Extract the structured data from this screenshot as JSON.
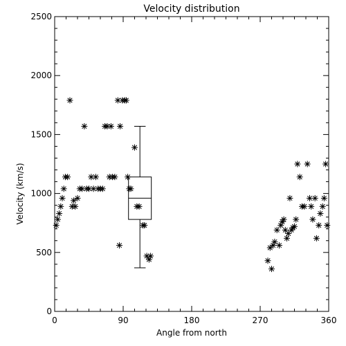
{
  "chart_data": {
    "type": "scatter",
    "title": "Velocity distribution",
    "xlabel": "Angle from north",
    "ylabel": "Velocity (km/s)",
    "xlim": [
      0,
      360
    ],
    "ylim": [
      0,
      2500
    ],
    "xticks": [
      0,
      90,
      180,
      270,
      360
    ],
    "yticks": [
      0,
      500,
      1000,
      1500,
      2000,
      2500
    ],
    "grid": false,
    "marker": "asterisk",
    "points": [
      [
        2,
        730
      ],
      [
        4,
        780
      ],
      [
        6,
        830
      ],
      [
        8,
        890
      ],
      [
        10,
        960
      ],
      [
        12,
        1040
      ],
      [
        14,
        1140
      ],
      [
        17,
        1140
      ],
      [
        20,
        1790
      ],
      [
        23,
        890
      ],
      [
        25,
        940
      ],
      [
        27,
        890
      ],
      [
        30,
        960
      ],
      [
        33,
        1040
      ],
      [
        36,
        1040
      ],
      [
        39,
        1570
      ],
      [
        42,
        1040
      ],
      [
        45,
        1040
      ],
      [
        48,
        1140
      ],
      [
        51,
        1040
      ],
      [
        54,
        1140
      ],
      [
        57,
        1040
      ],
      [
        60,
        1040
      ],
      [
        63,
        1040
      ],
      [
        66,
        1570
      ],
      [
        69,
        1570
      ],
      [
        72,
        1140
      ],
      [
        74,
        1570
      ],
      [
        76,
        1140
      ],
      [
        79,
        1140
      ],
      [
        83,
        1790
      ],
      [
        86,
        1570
      ],
      [
        85,
        560
      ],
      [
        89,
        1790
      ],
      [
        92,
        1790
      ],
      [
        94,
        1790
      ],
      [
        96,
        1140
      ],
      [
        98,
        1040
      ],
      [
        100,
        1040
      ],
      [
        105,
        1390
      ],
      [
        108,
        890
      ],
      [
        111,
        890
      ],
      [
        116,
        730
      ],
      [
        118,
        730
      ],
      [
        121,
        470
      ],
      [
        124,
        440
      ],
      [
        126,
        470
      ],
      [
        280,
        430
      ],
      [
        283,
        540
      ],
      [
        285,
        360
      ],
      [
        287,
        560
      ],
      [
        289,
        590
      ],
      [
        292,
        690
      ],
      [
        295,
        560
      ],
      [
        297,
        730
      ],
      [
        299,
        760
      ],
      [
        301,
        780
      ],
      [
        303,
        690
      ],
      [
        305,
        620
      ],
      [
        307,
        660
      ],
      [
        309,
        960
      ],
      [
        311,
        690
      ],
      [
        313,
        710
      ],
      [
        315,
        720
      ],
      [
        317,
        780
      ],
      [
        319,
        1250
      ],
      [
        322,
        1140
      ],
      [
        325,
        890
      ],
      [
        328,
        890
      ],
      [
        332,
        1250
      ],
      [
        335,
        960
      ],
      [
        337,
        890
      ],
      [
        339,
        780
      ],
      [
        342,
        960
      ],
      [
        344,
        620
      ],
      [
        347,
        730
      ],
      [
        349,
        830
      ],
      [
        352,
        890
      ],
      [
        354,
        960
      ],
      [
        356,
        1250
      ],
      [
        358,
        730
      ]
    ],
    "boxplot": {
      "x": 112,
      "width": 30,
      "min": 370,
      "q1": 780,
      "median": 960,
      "q3": 1140,
      "max": 1570
    }
  }
}
